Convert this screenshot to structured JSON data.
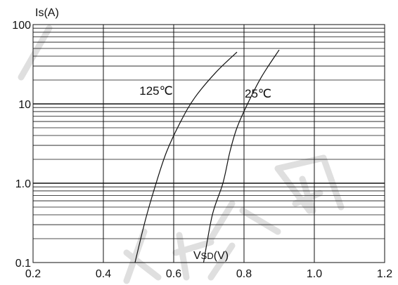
{
  "chart_data": {
    "type": "line",
    "title": "",
    "ylabel": "Is(A)",
    "xlabel": "VSD(V)",
    "xlabel_main": "V",
    "xlabel_sub": "SD",
    "xlabel_unit": "(V)",
    "x_scale": "linear",
    "y_scale": "log",
    "xlim": [
      0.2,
      1.2
    ],
    "ylim": [
      0.1,
      100
    ],
    "x_ticks": [
      0.2,
      0.4,
      0.6,
      0.8,
      1.0,
      1.2
    ],
    "x_tick_labels": [
      "0.2",
      "0.4",
      "0.6",
      "0.8",
      "1.0",
      "1.2"
    ],
    "y_ticks": [
      0.1,
      1,
      10,
      100
    ],
    "y_tick_labels": [
      "0.1",
      "1.0",
      "10",
      "100"
    ],
    "grid": true,
    "legend": "none",
    "series": [
      {
        "name": "125℃",
        "points": [
          [
            0.49,
            0.1
          ],
          [
            0.52,
            0.35
          ],
          [
            0.55,
            1.0
          ],
          [
            0.58,
            2.5
          ],
          [
            0.62,
            6.0
          ],
          [
            0.66,
            12.0
          ],
          [
            0.72,
            25.0
          ],
          [
            0.78,
            45.0
          ]
        ]
      },
      {
        "name": "25℃",
        "points": [
          [
            0.685,
            0.1
          ],
          [
            0.71,
            0.4
          ],
          [
            0.74,
            1.0
          ],
          [
            0.76,
            2.5
          ],
          [
            0.78,
            5.0
          ],
          [
            0.81,
            10.0
          ],
          [
            0.85,
            22.0
          ],
          [
            0.9,
            48.0
          ]
        ]
      }
    ],
    "annotations": [
      {
        "text": "125℃",
        "x": 0.55,
        "y": 13
      },
      {
        "text": "25℃",
        "x": 0.84,
        "y": 12
      }
    ]
  }
}
